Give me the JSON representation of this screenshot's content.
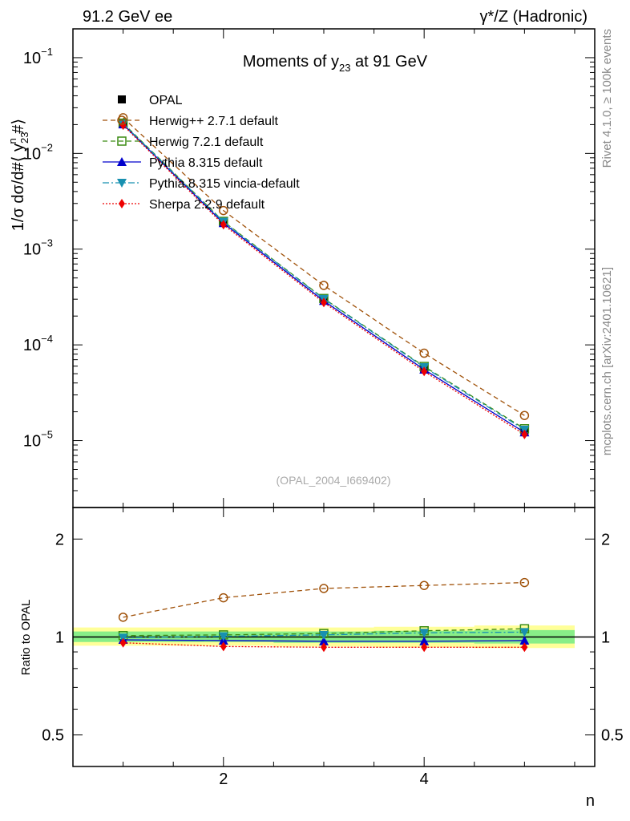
{
  "header": {
    "left": "91.2 GeV ee",
    "right": "γ*/Z (Hadronic)"
  },
  "side_text": {
    "rivet": "Rivet 4.1.0, ≥ 100k events",
    "mcplots": "mcplots.cern.ch [arXiv:2401.10621]"
  },
  "watermark": "(OPAL_2004_I669402)",
  "colors": {
    "opal": "#000000",
    "herwigpp": "#a0520a",
    "herwig7": "#3c8c14",
    "pythia": "#0000cc",
    "vincia": "#1890b0",
    "sherpa": "#ee0000",
    "band_yellow": "#ffff99",
    "band_green": "#88ee88"
  },
  "chart_data": [
    {
      "type": "line",
      "title": "Moments of y23 at 91 GeV",
      "xlabel": "n",
      "ylabel": "1/σ dσ/d#⟨ y23^n #⟩",
      "yscale": "log",
      "xlim": [
        0.5,
        5.7
      ],
      "ylim": [
        2e-06,
        0.2
      ],
      "x": [
        1,
        2,
        3,
        4,
        5
      ],
      "series": [
        {
          "key": "opal",
          "name": "OPAL",
          "marker": "square-filled",
          "style": "none",
          "values": [
            0.0205,
            0.00192,
            0.000297,
            5.68e-05,
            1.25e-05
          ]
        },
        {
          "key": "herwigpp",
          "name": "Herwig++ 2.7.1 default",
          "marker": "circle-open",
          "style": "dashed",
          "values": [
            0.0236,
            0.00253,
            0.000418,
            8.18e-05,
            1.83e-05
          ]
        },
        {
          "key": "herwig7",
          "name": "Herwig 7.2.1 default",
          "marker": "square-open",
          "style": "dashed",
          "values": [
            0.0207,
            0.00195,
            0.000305,
            5.95e-05,
            1.33e-05
          ]
        },
        {
          "key": "pythia",
          "name": "Pythia 8.315 default",
          "marker": "triangle-up",
          "style": "solid",
          "values": [
            0.0201,
            0.00187,
            0.000288,
            5.52e-05,
            1.22e-05
          ]
        },
        {
          "key": "vincia",
          "name": "Pythia 8.315 vincia-default",
          "marker": "triangle-down",
          "style": "dashdot",
          "values": [
            0.0204,
            0.00193,
            0.000302,
            5.85e-05,
            1.3e-05
          ]
        },
        {
          "key": "sherpa",
          "name": "Sherpa 2.2.9 default",
          "marker": "diamond",
          "style": "dotted",
          "values": [
            0.0197,
            0.0018,
            0.000277,
            5.28e-05,
            1.16e-05
          ]
        }
      ],
      "y_ticks": [
        {
          "value": 0.1,
          "mantissa": "10",
          "exp": "−1"
        },
        {
          "value": 0.01,
          "mantissa": "10",
          "exp": "−2"
        },
        {
          "value": 0.001,
          "mantissa": "10",
          "exp": "−3"
        },
        {
          "value": 0.0001,
          "mantissa": "10",
          "exp": "−4"
        },
        {
          "value": 1e-05,
          "mantissa": "10",
          "exp": "−5"
        }
      ]
    },
    {
      "type": "line",
      "title": "",
      "xlabel": "n",
      "ylabel": "Ratio to OPAL",
      "yscale": "log",
      "xlim": [
        0.5,
        5.7
      ],
      "ylim": [
        0.4,
        2.5
      ],
      "x": [
        1,
        2,
        3,
        4,
        5
      ],
      "x_ticks": [
        {
          "value": 2,
          "label": "2"
        },
        {
          "value": 4,
          "label": "4"
        }
      ],
      "y_ticks": [
        {
          "value": 0.5,
          "label": "0.5"
        },
        {
          "value": 1,
          "label": "1"
        },
        {
          "value": 2,
          "label": "2"
        }
      ],
      "bands": {
        "yellow": {
          "lo": [
            0.94,
            0.94,
            0.935,
            0.93,
            0.925
          ],
          "hi": [
            1.07,
            1.07,
            1.07,
            1.075,
            1.085
          ]
        },
        "green": {
          "lo": [
            0.965,
            0.965,
            0.96,
            0.96,
            0.955
          ],
          "hi": [
            1.04,
            1.04,
            1.04,
            1.045,
            1.05
          ]
        }
      },
      "series": [
        {
          "key": "herwigpp",
          "name": "Herwig++ 2.7.1 default",
          "values": [
            1.15,
            1.32,
            1.41,
            1.44,
            1.47
          ]
        },
        {
          "key": "herwig7",
          "name": "Herwig 7.2.1 default",
          "values": [
            1.01,
            1.015,
            1.025,
            1.045,
            1.06
          ]
        },
        {
          "key": "pythia",
          "name": "Pythia 8.315 default",
          "values": [
            0.98,
            0.975,
            0.97,
            0.97,
            0.975
          ]
        },
        {
          "key": "vincia",
          "name": "Pythia 8.315 vincia-default",
          "values": [
            0.995,
            1.005,
            1.015,
            1.03,
            1.035
          ]
        },
        {
          "key": "sherpa",
          "name": "Sherpa 2.2.9 default",
          "values": [
            0.96,
            0.935,
            0.93,
            0.93,
            0.93
          ]
        }
      ]
    }
  ]
}
